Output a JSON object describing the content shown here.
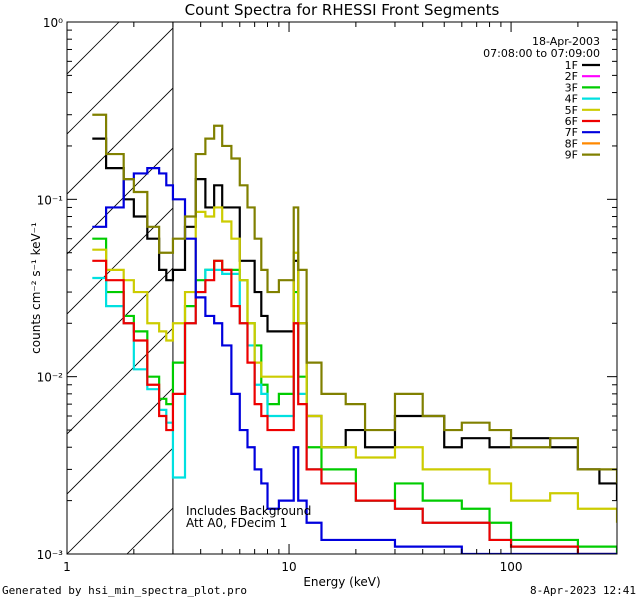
{
  "chart_data": {
    "type": "line",
    "title": "Count Spectra for RHESSI Front Segments",
    "xlabel": "Energy (keV)",
    "ylabel": "counts cm⁻² s⁻¹ keV⁻¹",
    "xscale": "log",
    "yscale": "log",
    "xlim": [
      1,
      300
    ],
    "ylim": [
      0.001,
      1
    ],
    "xticks": [
      {
        "value": 1,
        "label": "1"
      },
      {
        "value": 10,
        "label": "10"
      },
      {
        "value": 100,
        "label": "100"
      }
    ],
    "yticks": [
      {
        "value": 1,
        "label": "10⁰"
      },
      {
        "value": 0.1,
        "label": "10⁻¹"
      },
      {
        "value": 0.01,
        "label": "10⁻²"
      },
      {
        "value": 0.001,
        "label": "10⁻³"
      }
    ],
    "hatched_region_xmax_keV": 3,
    "date": "18-Apr-2003",
    "time_range": "07:08:00 to 07:09:00",
    "annotations": [
      "Includes Background",
      "Att A0, FDecim 1"
    ],
    "legend_position": "top-right",
    "series": [
      {
        "name": "1F",
        "color": "#000000",
        "points": [
          [
            1.3,
            0.22
          ],
          [
            1.5,
            0.15
          ],
          [
            1.8,
            0.1
          ],
          [
            2.0,
            0.08
          ],
          [
            2.3,
            0.06
          ],
          [
            2.6,
            0.04
          ],
          [
            2.8,
            0.035
          ],
          [
            3.0,
            0.04
          ],
          [
            3.4,
            0.07
          ],
          [
            3.8,
            0.13
          ],
          [
            4.2,
            0.09
          ],
          [
            4.6,
            0.12
          ],
          [
            5.0,
            0.09
          ],
          [
            5.5,
            0.09
          ],
          [
            6.0,
            0.045
          ],
          [
            6.5,
            0.045
          ],
          [
            7.0,
            0.03
          ],
          [
            7.5,
            0.022
          ],
          [
            8.0,
            0.018
          ],
          [
            9.0,
            0.018
          ],
          [
            10.5,
            0.045
          ],
          [
            11.0,
            0.02
          ],
          [
            12.0,
            0.006
          ],
          [
            14,
            0.004
          ],
          [
            18,
            0.005
          ],
          [
            22,
            0.004
          ],
          [
            30,
            0.006
          ],
          [
            40,
            0.006
          ],
          [
            50,
            0.004
          ],
          [
            60,
            0.0045
          ],
          [
            80,
            0.004
          ],
          [
            100,
            0.0045
          ],
          [
            150,
            0.004
          ],
          [
            200,
            0.003
          ],
          [
            250,
            0.0025
          ],
          [
            300,
            0.002
          ]
        ]
      },
      {
        "name": "2F",
        "color": "#ff00ff",
        "points": []
      },
      {
        "name": "3F",
        "color": "#00cc00",
        "points": [
          [
            1.3,
            0.06
          ],
          [
            1.5,
            0.03
          ],
          [
            1.8,
            0.022
          ],
          [
            2.0,
            0.018
          ],
          [
            2.3,
            0.01
          ],
          [
            2.6,
            0.0075
          ],
          [
            2.8,
            0.007
          ],
          [
            3.0,
            0.012
          ],
          [
            3.4,
            0.025
          ],
          [
            3.8,
            0.035
          ],
          [
            4.2,
            0.04
          ],
          [
            4.6,
            0.045
          ],
          [
            5.0,
            0.04
          ],
          [
            5.5,
            0.04
          ],
          [
            6.0,
            0.035
          ],
          [
            6.5,
            0.02
          ],
          [
            7.0,
            0.015
          ],
          [
            7.5,
            0.009
          ],
          [
            8.0,
            0.007
          ],
          [
            9.0,
            0.008
          ],
          [
            10.5,
            0.03
          ],
          [
            11.0,
            0.01
          ],
          [
            12.0,
            0.004
          ],
          [
            14,
            0.003
          ],
          [
            20,
            0.002
          ],
          [
            30,
            0.0025
          ],
          [
            40,
            0.002
          ],
          [
            60,
            0.0018
          ],
          [
            80,
            0.0015
          ],
          [
            100,
            0.0012
          ],
          [
            150,
            0.0012
          ],
          [
            200,
            0.0011
          ],
          [
            300,
            0.001
          ]
        ]
      },
      {
        "name": "4F",
        "color": "#00e0e0",
        "points": [
          [
            1.3,
            0.036
          ],
          [
            1.5,
            0.025
          ],
          [
            1.8,
            0.02
          ],
          [
            2.0,
            0.011
          ],
          [
            2.3,
            0.0085
          ],
          [
            2.6,
            0.0065
          ],
          [
            2.8,
            0.0055
          ],
          [
            3.0,
            0.0027
          ],
          [
            3.4,
            0.02
          ],
          [
            3.8,
            0.03
          ],
          [
            4.2,
            0.04
          ],
          [
            4.6,
            0.04
          ],
          [
            5.0,
            0.038
          ],
          [
            5.5,
            0.038
          ],
          [
            6.0,
            0.02
          ],
          [
            6.5,
            0.015
          ],
          [
            7.0,
            0.009
          ],
          [
            7.5,
            0.008
          ],
          [
            8.0,
            0.006
          ],
          [
            9.0,
            0.006
          ],
          [
            10.5,
            0.02
          ],
          [
            11.0,
            0.008
          ],
          [
            12.0,
            0.003
          ],
          [
            14,
            0.0025
          ],
          [
            20,
            0.002
          ],
          [
            30,
            0.0018
          ],
          [
            40,
            0.0015
          ],
          [
            60,
            0.0015
          ],
          [
            80,
            0.0012
          ],
          [
            100,
            0.0011
          ],
          [
            150,
            0.0011
          ],
          [
            200,
            0.001
          ],
          [
            300,
            0.001
          ]
        ]
      },
      {
        "name": "5F",
        "color": "#cccc00",
        "points": [
          [
            1.3,
            0.052
          ],
          [
            1.5,
            0.04
          ],
          [
            1.8,
            0.035
          ],
          [
            2.0,
            0.03
          ],
          [
            2.3,
            0.02
          ],
          [
            2.6,
            0.018
          ],
          [
            2.8,
            0.016
          ],
          [
            3.0,
            0.02
          ],
          [
            3.4,
            0.03
          ],
          [
            3.8,
            0.085
          ],
          [
            4.2,
            0.08
          ],
          [
            4.6,
            0.09
          ],
          [
            5.0,
            0.075
          ],
          [
            5.5,
            0.06
          ],
          [
            6.0,
            0.035
          ],
          [
            6.5,
            0.02
          ],
          [
            7.0,
            0.012
          ],
          [
            7.5,
            0.01
          ],
          [
            8.0,
            0.01
          ],
          [
            9.0,
            0.01
          ],
          [
            10.5,
            0.05
          ],
          [
            11.0,
            0.02
          ],
          [
            12.0,
            0.006
          ],
          [
            14,
            0.004
          ],
          [
            20,
            0.0035
          ],
          [
            30,
            0.004
          ],
          [
            40,
            0.003
          ],
          [
            60,
            0.003
          ],
          [
            80,
            0.0025
          ],
          [
            100,
            0.002
          ],
          [
            150,
            0.0022
          ],
          [
            200,
            0.0018
          ],
          [
            300,
            0.0015
          ]
        ]
      },
      {
        "name": "6F",
        "color": "#ee0000",
        "points": [
          [
            1.3,
            0.045
          ],
          [
            1.5,
            0.035
          ],
          [
            1.8,
            0.02
          ],
          [
            2.0,
            0.016
          ],
          [
            2.3,
            0.009
          ],
          [
            2.6,
            0.006
          ],
          [
            2.8,
            0.005
          ],
          [
            3.0,
            0.008
          ],
          [
            3.4,
            0.02
          ],
          [
            3.8,
            0.03
          ],
          [
            4.2,
            0.035
          ],
          [
            4.6,
            0.045
          ],
          [
            5.0,
            0.04
          ],
          [
            5.5,
            0.025
          ],
          [
            6.0,
            0.02
          ],
          [
            6.5,
            0.012
          ],
          [
            7.0,
            0.007
          ],
          [
            7.5,
            0.006
          ],
          [
            8.0,
            0.005
          ],
          [
            9.0,
            0.005
          ],
          [
            10.5,
            0.02
          ],
          [
            11.0,
            0.007
          ],
          [
            12.0,
            0.003
          ],
          [
            14,
            0.0025
          ],
          [
            20,
            0.002
          ],
          [
            30,
            0.0018
          ],
          [
            40,
            0.0015
          ],
          [
            60,
            0.0015
          ],
          [
            80,
            0.0012
          ],
          [
            100,
            0.0011
          ],
          [
            150,
            0.0011
          ],
          [
            200,
            0.001
          ],
          [
            300,
            0.001
          ]
        ]
      },
      {
        "name": "7F",
        "color": "#0000dd",
        "points": [
          [
            1.3,
            0.07
          ],
          [
            1.5,
            0.09
          ],
          [
            1.8,
            0.13
          ],
          [
            2.0,
            0.14
          ],
          [
            2.3,
            0.15
          ],
          [
            2.6,
            0.14
          ],
          [
            2.8,
            0.12
          ],
          [
            3.0,
            0.1
          ],
          [
            3.4,
            0.06
          ],
          [
            3.8,
            0.028
          ],
          [
            4.2,
            0.022
          ],
          [
            4.6,
            0.02
          ],
          [
            5.0,
            0.015
          ],
          [
            5.5,
            0.008
          ],
          [
            6.0,
            0.005
          ],
          [
            6.5,
            0.004
          ],
          [
            7.0,
            0.003
          ],
          [
            7.5,
            0.0025
          ],
          [
            8.0,
            0.0018
          ],
          [
            9.0,
            0.002
          ],
          [
            10.5,
            0.004
          ],
          [
            11.0,
            0.002
          ],
          [
            12.0,
            0.0015
          ],
          [
            14,
            0.0012
          ],
          [
            20,
            0.0012
          ],
          [
            30,
            0.0011
          ],
          [
            60,
            0.001
          ],
          [
            300,
            0.001
          ]
        ]
      },
      {
        "name": "8F",
        "color": "#ff8800",
        "points": []
      },
      {
        "name": "9F",
        "color": "#808000",
        "points": [
          [
            1.3,
            0.3
          ],
          [
            1.5,
            0.18
          ],
          [
            1.8,
            0.13
          ],
          [
            2.0,
            0.11
          ],
          [
            2.3,
            0.07
          ],
          [
            2.6,
            0.05
          ],
          [
            2.8,
            0.05
          ],
          [
            3.0,
            0.06
          ],
          [
            3.4,
            0.08
          ],
          [
            3.8,
            0.18
          ],
          [
            4.2,
            0.22
          ],
          [
            4.6,
            0.26
          ],
          [
            5.0,
            0.2
          ],
          [
            5.5,
            0.17
          ],
          [
            6.0,
            0.12
          ],
          [
            6.5,
            0.09
          ],
          [
            7.0,
            0.06
          ],
          [
            7.5,
            0.04
          ],
          [
            8.0,
            0.03
          ],
          [
            9.0,
            0.035
          ],
          [
            10.5,
            0.09
          ],
          [
            11.0,
            0.04
          ],
          [
            12.0,
            0.012
          ],
          [
            14,
            0.008
          ],
          [
            18,
            0.007
          ],
          [
            22,
            0.005
          ],
          [
            30,
            0.008
          ],
          [
            40,
            0.006
          ],
          [
            50,
            0.005
          ],
          [
            60,
            0.0055
          ],
          [
            80,
            0.005
          ],
          [
            100,
            0.004
          ],
          [
            150,
            0.0045
          ],
          [
            200,
            0.003
          ],
          [
            250,
            0.003
          ],
          [
            300,
            0.0025
          ]
        ]
      }
    ]
  },
  "footer": {
    "generated": "Generated by hsi_min_spectra_plot.pro",
    "timestamp": "8-Apr-2023 12:41"
  }
}
